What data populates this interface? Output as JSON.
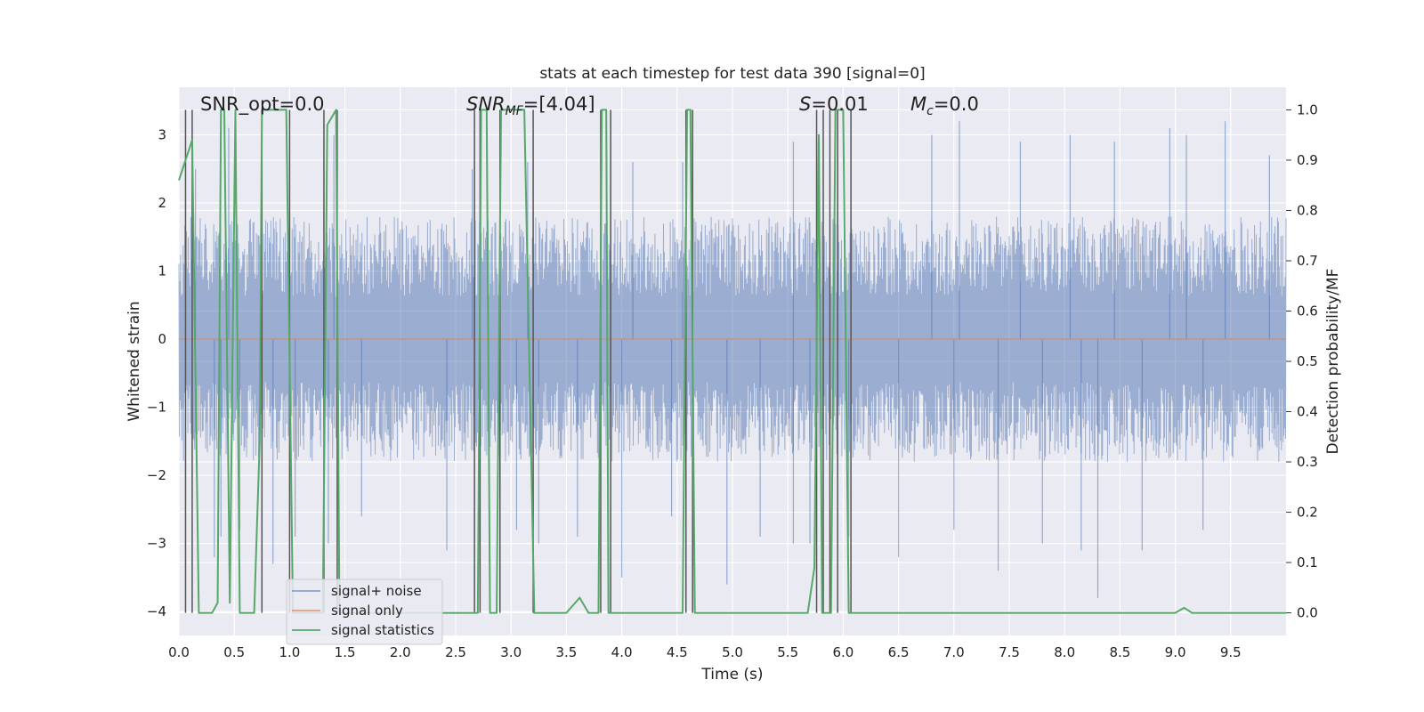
{
  "chart_data": {
    "type": "line",
    "title": "stats at each timestep for test data 390 [signal=0]",
    "xlabel": "Time (s)",
    "ylabel": "Whitened strain",
    "y2label": "Detection probability/MF",
    "xlim": [
      0.0,
      10.0
    ],
    "ylim": [
      -4.35,
      3.7
    ],
    "y2lim": [
      -0.045,
      1.045
    ],
    "x_ticks": [
      0.0,
      0.5,
      1.0,
      1.5,
      2.0,
      2.5,
      3.0,
      3.5,
      4.0,
      4.5,
      5.0,
      5.5,
      6.0,
      6.5,
      7.0,
      7.5,
      8.0,
      8.5,
      9.0,
      9.5
    ],
    "x_tick_labels": [
      "0.0",
      "0.5",
      "1.0",
      "1.5",
      "2.0",
      "2.5",
      "3.0",
      "3.5",
      "4.0",
      "4.5",
      "5.0",
      "5.5",
      "6.0",
      "6.5",
      "7.0",
      "7.5",
      "8.0",
      "8.5",
      "9.0",
      "9.5"
    ],
    "y_ticks": [
      -4,
      -3,
      -2,
      -1,
      0,
      1,
      2,
      3
    ],
    "y_tick_labels": [
      "−4",
      "−3",
      "−2",
      "−1",
      "0",
      "1",
      "2",
      "3"
    ],
    "y2_ticks": [
      0.0,
      0.1,
      0.2,
      0.3,
      0.4,
      0.5,
      0.6,
      0.7,
      0.8,
      0.9,
      1.0
    ],
    "y2_tick_labels": [
      "0.0",
      "0.1",
      "0.2",
      "0.3",
      "0.4",
      "0.5",
      "0.6",
      "0.7",
      "0.8",
      "0.9",
      "1.0"
    ],
    "grid": true,
    "legend_position": "bottom-left",
    "colors": {
      "background": "#eaeaf2",
      "grid": "#ffffff",
      "noise": "#4c72b0",
      "signal": "#dd8452",
      "stats": "#55a868",
      "vlines": "#555555"
    },
    "series": [
      {
        "name": "signal+ noise",
        "style": "dense noise trace",
        "band_lower_approx": -1.8,
        "band_upper_approx": 1.8,
        "negative_spike_times": [
          0.32,
          0.38,
          0.55,
          0.85,
          1.05,
          1.35,
          1.65,
          2.42,
          2.9,
          3.05,
          3.25,
          3.6,
          4.0,
          4.45,
          4.95,
          5.25,
          5.55,
          5.7,
          6.05,
          6.5,
          7.0,
          7.4,
          7.8,
          8.15,
          8.3,
          8.7,
          9.25
        ],
        "negative_spike_values": [
          -3.2,
          -2.9,
          -2.8,
          -3.3,
          -2.9,
          -3.0,
          -2.6,
          -3.1,
          -2.8,
          -2.8,
          -3.0,
          -2.9,
          -3.5,
          -2.6,
          -3.6,
          -2.9,
          -3.0,
          -3.0,
          -2.9,
          -3.2,
          -2.8,
          -3.4,
          -3.0,
          -3.1,
          -3.8,
          -3.1,
          -2.8
        ],
        "positive_spike_times": [
          0.15,
          0.45,
          1.0,
          1.4,
          2.65,
          3.15,
          4.1,
          4.55,
          5.55,
          6.8,
          7.05,
          7.6,
          8.05,
          8.45,
          8.95,
          9.1,
          9.45,
          9.85
        ],
        "positive_spike_values": [
          2.5,
          3.1,
          2.6,
          3.0,
          2.5,
          2.6,
          2.6,
          2.6,
          2.9,
          3.0,
          3.2,
          2.9,
          3.0,
          2.9,
          3.1,
          3.0,
          3.2,
          2.7
        ]
      },
      {
        "name": "signal only",
        "x": [
          0.0,
          10.0
        ],
        "y": [
          0.0,
          0.0
        ]
      },
      {
        "name": "signal statistics",
        "axis": "right",
        "x": [
          0.0,
          0.12,
          0.18,
          0.3,
          0.35,
          0.38,
          0.41,
          0.46,
          0.51,
          0.55,
          0.6,
          0.68,
          0.73,
          0.75,
          0.78,
          0.82,
          0.97,
          1.03,
          1.1,
          1.3,
          1.34,
          1.42,
          1.45,
          1.5,
          2.7,
          2.73,
          2.78,
          2.81,
          2.87,
          2.91,
          2.96,
          3.12,
          3.21,
          3.26,
          3.42,
          3.5,
          3.62,
          3.7,
          3.79,
          3.82,
          3.86,
          3.88,
          3.9,
          4.55,
          4.59,
          4.62,
          4.66,
          5.68,
          5.74,
          5.78,
          5.81,
          5.86,
          5.89,
          5.93,
          5.96,
          6.0,
          6.05,
          6.1,
          6.13,
          9.0,
          9.08,
          9.15,
          10.0
        ],
        "y": [
          0.86,
          0.94,
          0.0,
          0.0,
          0.02,
          1.0,
          1.0,
          0.02,
          1.0,
          0.0,
          0.0,
          0.0,
          0.34,
          1.0,
          1.0,
          1.0,
          1.0,
          0.0,
          0.0,
          0.0,
          0.97,
          1.0,
          0.0,
          0.0,
          0.0,
          1.0,
          1.0,
          0.0,
          0.0,
          1.0,
          1.0,
          1.0,
          0.0,
          0.0,
          0.0,
          0.0,
          0.03,
          0.0,
          0.0,
          1.0,
          1.0,
          0.0,
          0.0,
          0.0,
          1.0,
          1.0,
          0.0,
          0.0,
          0.09,
          0.95,
          0.0,
          0.0,
          0.0,
          1.0,
          1.0,
          1.0,
          0.0,
          0.0,
          0.0,
          0.0,
          0.01,
          0.0,
          0.0
        ]
      }
    ],
    "vertical_lines_x": [
      0.06,
      0.12,
      0.75,
      1.0,
      1.31,
      1.43,
      2.67,
      2.72,
      2.9,
      3.2,
      3.81,
      3.9,
      4.58,
      4.64,
      5.76,
      5.82,
      5.88,
      5.95,
      6.07
    ],
    "annotations": [
      {
        "base": "SNR_opt",
        "sub": "",
        "value": "=0.0",
        "italic": false
      },
      {
        "base": "SNR",
        "sub": "MF",
        "value": "=[4.04]",
        "italic": true
      },
      {
        "base": "S",
        "sub": "",
        "value": "=0.01",
        "italic": true
      },
      {
        "base": "M",
        "sub": "c",
        "value": "=0.0",
        "italic": true
      }
    ]
  }
}
